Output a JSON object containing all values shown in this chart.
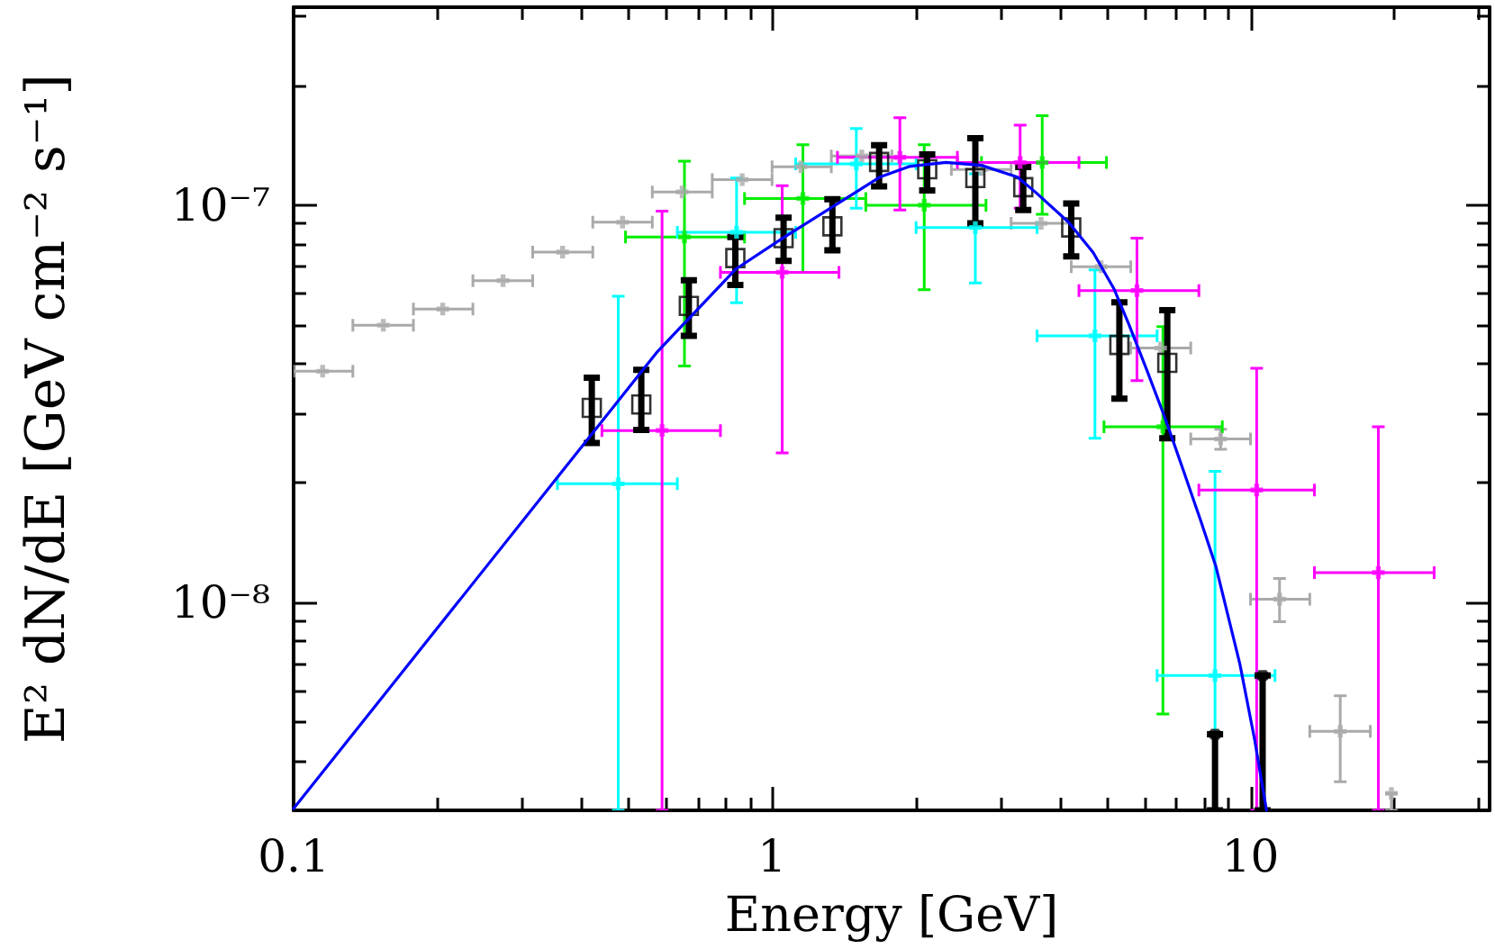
{
  "chart_data": {
    "type": "scatter",
    "xlabel": "Energy [GeV]",
    "ylabel": "E² dN/dE [GeV cm⁻² s⁻¹]",
    "log": "xy",
    "marker": "cross",
    "xlim": [
      0.1,
      31.6
    ],
    "ylim": [
      3e-09,
      3.15e-07
    ],
    "xticks": [
      0.1,
      {
        "value": 0.2,
        "label": null
      },
      {
        "value": 0.3,
        "label": null
      },
      {
        "value": 0.4,
        "label": null
      },
      {
        "value": 0.5,
        "label": null
      },
      {
        "value": 0.6,
        "label": null
      },
      {
        "value": 0.7,
        "label": null
      },
      {
        "value": 0.8,
        "label": null
      },
      {
        "value": 0.9,
        "label": null
      },
      1,
      {
        "value": 2,
        "label": null
      },
      {
        "value": 3,
        "label": null
      },
      {
        "value": 4,
        "label": null
      },
      {
        "value": 5,
        "label": null
      },
      {
        "value": 6,
        "label": null
      },
      {
        "value": 7,
        "label": null
      },
      {
        "value": 8,
        "label": null
      },
      {
        "value": 9,
        "label": null
      },
      10,
      {
        "value": 20,
        "label": null
      },
      {
        "value": 30,
        "label": null
      }
    ],
    "yticks": [
      {
        "value": 4e-09,
        "label": null
      },
      {
        "value": 5e-09,
        "label": null
      },
      {
        "value": 6e-09,
        "label": null
      },
      {
        "value": 7e-09,
        "label": null
      },
      {
        "value": 8e-09,
        "label": null
      },
      {
        "value": 9e-09,
        "label": null
      },
      {
        "value": 1e-08,
        "label": "10⁻⁸"
      },
      {
        "value": 2e-08,
        "label": null
      },
      {
        "value": 3e-08,
        "label": null
      },
      {
        "value": 4e-08,
        "label": null
      },
      {
        "value": 5e-08,
        "label": null
      },
      {
        "value": 6e-08,
        "label": null
      },
      {
        "value": 7e-08,
        "label": null
      },
      {
        "value": 8e-08,
        "label": null
      },
      {
        "value": 9e-08,
        "label": null
      },
      {
        "value": 1e-07,
        "label": "10⁻⁷"
      },
      {
        "value": 2e-07,
        "label": null
      },
      {
        "value": 3e-07,
        "label": null
      }
    ],
    "series": [
      {
        "color": "#aaaaaa",
        "x": [
          0.115,
          0.154,
          0.205,
          0.274,
          0.365,
          0.487,
          0.649,
          0.866,
          1.15,
          1.54,
          2.05,
          2.74,
          3.65,
          4.87,
          6.49,
          8.66,
          11.5,
          15.4
        ],
        "values": [
          3.82e-08,
          4.99e-08,
          5.48e-08,
          6.46e-08,
          7.62e-08,
          9.06e-08,
          1.08e-07,
          1.16e-07,
          1.25e-07,
          1.33e-07,
          null,
          1.23e-07,
          9e-08,
          7e-08,
          4.37e-08,
          2.58e-08,
          1.02e-08,
          4.74e-09
        ],
        "xerrors": [
          [
            0.1,
            0.133
          ],
          [
            0.133,
            0.178
          ],
          [
            0.178,
            0.237
          ],
          [
            0.237,
            0.316
          ],
          [
            0.316,
            0.422
          ],
          [
            0.422,
            0.562
          ],
          [
            0.562,
            0.75
          ],
          [
            0.75,
            1.0
          ],
          [
            1.0,
            1.33
          ],
          [
            1.33,
            1.78
          ],
          null,
          [
            2.37,
            3.16
          ],
          [
            3.16,
            4.22
          ],
          [
            4.22,
            5.62
          ],
          [
            5.62,
            7.5
          ],
          [
            7.5,
            10
          ],
          [
            10,
            13.3
          ],
          [
            13.3,
            17.8
          ]
        ],
        "errors": [
          null,
          null,
          null,
          null,
          null,
          null,
          null,
          null,
          null,
          null,
          null,
          null,
          null,
          null,
          null,
          [
            2.43e-08,
            2.73e-08
          ],
          [
            8.95e-09,
            1.15e-08
          ],
          [
            3.54e-09,
            5.83e-09
          ]
        ]
      },
      {
        "color": "#00ee00",
        "x": [
          0.656,
          1.16,
          2.08,
          3.67,
          6.56
        ],
        "values": [
          8.32e-08,
          1.04e-07,
          1e-07,
          1.28e-07,
          2.77e-08
        ],
        "xerrors": [
          [
            0.494,
            0.876
          ],
          [
            0.876,
            1.57
          ],
          [
            1.57,
            2.8
          ],
          [
            2.74,
            5.0
          ],
          [
            4.94,
            8.73
          ]
        ],
        "errors": [
          [
            3.94e-08,
            1.29e-07
          ],
          [
            6.78e-08,
            1.42e-07
          ],
          [
            6.13e-08,
            1.42e-07
          ],
          [
            9.49e-08,
            1.68e-07
          ],
          [
            5.24e-09,
            4.95e-08
          ]
        ]
      },
      {
        "color": "#00ffff",
        "x": [
          0.477,
          0.843,
          1.5,
          2.66,
          4.73,
          8.43
        ],
        "values": [
          1.99e-08,
          8.55e-08,
          1.27e-07,
          8.79e-08,
          4.69e-08,
          6.55e-09
        ],
        "xerrors": [
          [
            0.356,
            0.634
          ],
          [
            0.634,
            1.12
          ],
          [
            1.12,
            2.0
          ],
          [
            2.0,
            3.58
          ],
          [
            3.58,
            6.38
          ],
          [
            6.38,
            11.25
          ]
        ],
        "errors": [
          [
            3e-09,
            5.9e-08
          ],
          [
            5.68e-08,
            1.17e-07
          ],
          [
            9.83e-08,
            1.56e-07
          ],
          [
            6.37e-08,
            1.2e-07
          ],
          [
            2.59e-08,
            6.87e-08
          ],
          [
            3e-09,
            2.14e-08
          ]
        ]
      },
      {
        "color": "#ff00ff",
        "x": [
          0.589,
          1.05,
          1.85,
          3.3,
          5.79,
          10.3,
          18.5
        ],
        "values": [
          2.71e-08,
          6.78e-08,
          1.32e-07,
          1.28e-07,
          6.1e-08,
          1.92e-08,
          1.19e-08
        ],
        "xerrors": [
          [
            0.441,
            0.78
          ],
          [
            0.78,
            1.38
          ],
          [
            1.37,
            2.44
          ],
          [
            2.44,
            4.38
          ],
          [
            4.38,
            7.8
          ],
          [
            7.8,
            13.6
          ],
          [
            13.6,
            24.2
          ]
        ],
        "errors": [
          [
            3e-09,
            9.66e-08
          ],
          [
            2.38e-08,
            1.12e-07
          ],
          [
            9.72e-08,
            1.66e-07
          ],
          [
            9.83e-08,
            1.59e-07
          ],
          [
            3.62e-08,
            8.26e-08
          ],
          [
            3e-09,
            3.89e-08
          ],
          [
            3e-09,
            2.77e-08
          ]
        ]
      },
      {
        "color": "#000000",
        "marker": "square",
        "x": [
          0.42,
          0.533,
          0.67,
          0.838,
          1.057,
          1.337,
          1.674,
          2.11,
          2.66,
          3.35,
          4.22,
          5.32,
          6.7
        ],
        "values": [
          3.09e-08,
          3.15e-08,
          5.58e-08,
          7.36e-08,
          8.26e-08,
          8.85e-08,
          1.285e-07,
          1.232e-07,
          1.17e-07,
          1.11e-07,
          8.79e-08,
          4.45e-08,
          4.01e-08
        ],
        "errors": [
          [
            2.52e-08,
            3.68e-08
          ],
          [
            2.72e-08,
            3.85e-08
          ],
          [
            4.69e-08,
            6.47e-08
          ],
          [
            6.3e-08,
            8.32e-08
          ],
          [
            7.24e-08,
            9.3e-08
          ],
          [
            7.7e-08,
            1.035e-07
          ],
          [
            1.116e-07,
            1.416e-07
          ],
          [
            1.09e-07,
            1.343e-07
          ],
          [
            9.01e-08,
            1.475e-07
          ],
          [
            9.72e-08,
            1.248e-07
          ],
          [
            7.43e-08,
            1.01e-07
          ],
          [
            3.26e-08,
            5.7e-08
          ],
          [
            2.59e-08,
            5.44e-08
          ]
        ]
      },
      {
        "color": "#000000",
        "x": [
          8.43,
          10.6
        ],
        "values": [
          4.66e-09,
          6.55e-09
        ],
        "errors": [
          [
            3e-09,
            4.66e-09
          ],
          [
            3e-09,
            6.55e-09
          ]
        ]
      },
      {
        "type": "line",
        "color": "#0000ff",
        "marker": "none",
        "x": [
          0.1,
          0.576,
          0.839,
          1.057,
          1.332,
          1.678,
          1.94,
          2.31,
          2.74,
          3.26,
          3.56,
          4.17,
          4.69,
          5.18,
          5.57,
          6.07,
          6.63,
          7.22,
          7.88,
          8.47,
          9.5,
          10.2,
          10.8
        ],
        "values": [
          3.03e-09,
          4.28e-08,
          6.9e-08,
          8.29e-08,
          9.87e-08,
          1.176e-07,
          1.252e-07,
          1.282e-07,
          1.26e-07,
          1.176e-07,
          1.076e-07,
          9.05e-08,
          7.6e-08,
          6.17e-08,
          5.01e-08,
          3.85e-08,
          2.91e-08,
          2.17e-08,
          1.6e-08,
          1.23e-08,
          7.01e-09,
          4.52e-09,
          3e-09
        ]
      },
      {
        "color": "#aaaaaa",
        "x": [
          19.7
        ],
        "values": [
          3.31e-09
        ],
        "xerrors": [
          null
        ],
        "errors": [
          [
            3e-09,
            3.31e-09
          ]
        ]
      }
    ]
  }
}
